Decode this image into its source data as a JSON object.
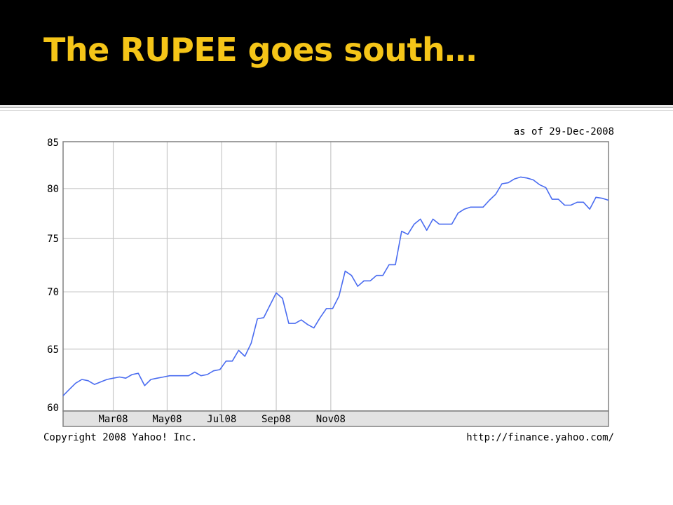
{
  "slide": {
    "title": "The RUPEE goes south…"
  },
  "chart_data": {
    "type": "line",
    "as_of": "as of 29-Dec-2008",
    "copyright": "Copyright 2008 Yahoo! Inc.",
    "source_url": "http://finance.yahoo.com/",
    "y_ticks": [
      85,
      80,
      75,
      70,
      65,
      60
    ],
    "ylim": [
      60,
      85
    ],
    "x_ticks": [
      "Mar08",
      "May08",
      "Jul08",
      "Sep08",
      "Nov08"
    ],
    "x_tick_weeks": [
      8,
      16.6,
      25.3,
      34,
      42.7
    ],
    "grid": true,
    "line_color": "#4a6cf0",
    "series": [
      {
        "values": [
          61.2,
          61.7,
          62.2,
          62.5,
          62.4,
          62.1,
          62.3,
          62.5,
          62.6,
          62.7,
          62.6,
          62.9,
          63.0,
          62.0,
          62.5,
          62.6,
          62.7,
          62.8,
          62.8,
          62.8,
          62.8,
          63.1,
          62.8,
          62.9,
          63.2,
          63.3,
          64.0,
          64.0,
          64.9,
          64.4,
          65.5,
          67.6,
          67.7,
          68.8,
          69.9,
          69.4,
          67.2,
          67.2,
          67.5,
          67.1,
          66.8,
          67.7,
          68.5,
          68.5,
          69.6,
          71.9,
          71.5,
          70.5,
          71.0,
          71.0,
          71.5,
          71.5,
          72.5,
          72.5,
          75.7,
          75.4,
          76.4,
          76.9,
          75.8,
          76.9,
          76.4,
          76.4,
          76.4,
          77.5,
          77.9,
          78.1,
          78.1,
          78.1,
          78.8,
          79.4,
          80.5,
          80.6,
          81.0,
          81.2,
          81.1,
          80.9,
          80.4,
          80.1,
          78.9,
          78.9,
          78.3,
          78.3,
          78.6,
          78.6,
          77.9,
          79.1,
          79.0,
          78.8
        ]
      }
    ]
  }
}
